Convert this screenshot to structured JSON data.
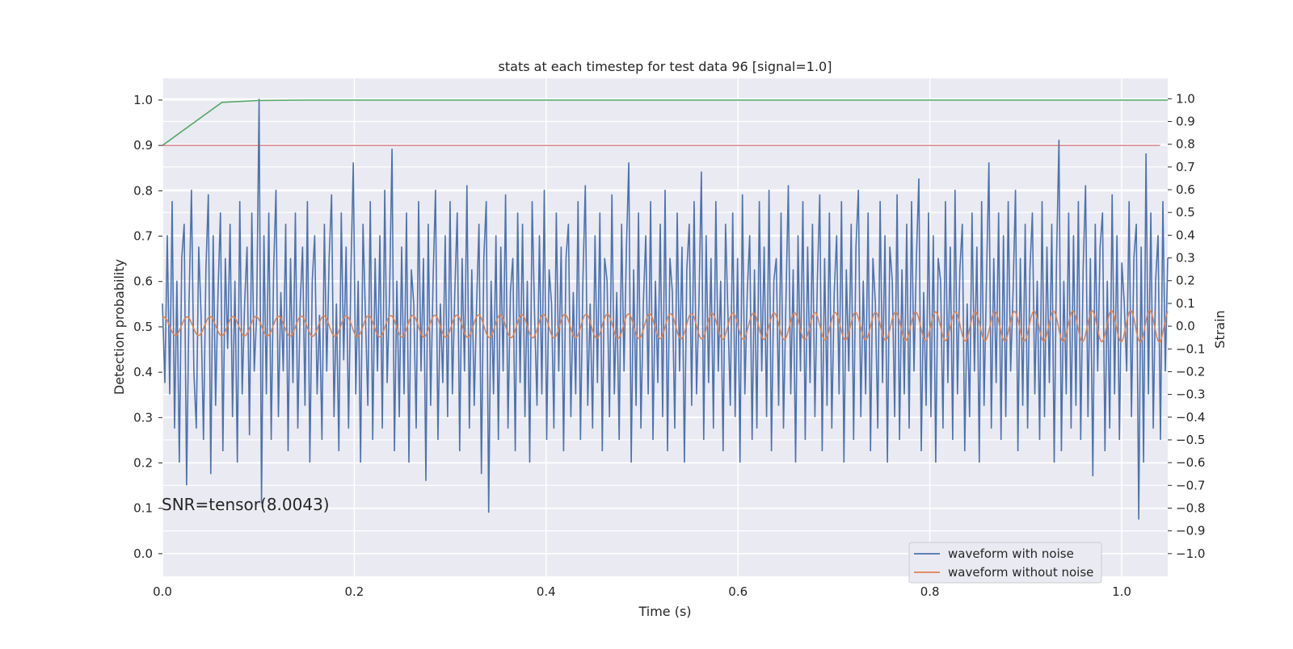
{
  "chart_data": {
    "type": "line",
    "title": "stats at each timestep for test data 96 [signal=1.0]",
    "xlabel": "Time (s)",
    "ylabel_left": "Detection probability",
    "ylabel_right": "Strain",
    "xlim": [
      0.0,
      1.048
    ],
    "ylim_left": [
      -0.05,
      1.048
    ],
    "ylim_right": [
      -1.1,
      1.09
    ],
    "xticks": [
      0.0,
      0.2,
      0.4,
      0.6,
      0.8,
      1.0
    ],
    "xtick_labels": [
      "0.0",
      "0.2",
      "0.4",
      "0.6",
      "0.8",
      "1.0"
    ],
    "yticks_left": [
      0.0,
      0.1,
      0.2,
      0.3,
      0.4,
      0.5,
      0.6,
      0.7,
      0.8,
      0.9,
      1.0
    ],
    "ytick_labels_left": [
      "0.0",
      "0.1",
      "0.2",
      "0.3",
      "0.4",
      "0.5",
      "0.6",
      "0.7",
      "0.8",
      "0.9",
      "1.0"
    ],
    "yticks_right": [
      -1.0,
      -0.9,
      -0.8,
      -0.7,
      -0.6,
      -0.5,
      -0.4,
      -0.3,
      -0.2,
      -0.1,
      0.0,
      0.1,
      0.2,
      0.3,
      0.4,
      0.5,
      0.6,
      0.7,
      0.8,
      0.9,
      1.0
    ],
    "ytick_labels_right": [
      "−1.0",
      "−0.9",
      "−0.8",
      "−0.7",
      "−0.6",
      "−0.5",
      "−0.4",
      "−0.3",
      "−0.2",
      "−0.1",
      "0.0",
      "0.1",
      "0.2",
      "0.3",
      "0.4",
      "0.5",
      "0.6",
      "0.7",
      "0.8",
      "0.9",
      "1.0"
    ],
    "grid": true,
    "legend_position": "lower-right",
    "annotation": "SNR=tensor(8.0043)",
    "series": [
      {
        "name": "waveform with noise",
        "axis": "right",
        "color": "#4c72b0",
        "x_start": 0.0,
        "x_end": 1.048,
        "values": [
          0.1,
          -0.25,
          0.4,
          -0.3,
          0.55,
          -0.45,
          0.2,
          -0.6,
          0.3,
          0.45,
          -0.7,
          0.1,
          0.6,
          -0.2,
          -0.45,
          0.35,
          0.05,
          -0.5,
          0.25,
          0.58,
          -0.65,
          0.4,
          -0.35,
          0.15,
          0.5,
          -0.55,
          0.3,
          -0.1,
          0.45,
          -0.4,
          0.2,
          -0.6,
          0.55,
          -0.3,
          0.1,
          0.35,
          -0.48,
          0.5,
          -0.2,
          0.05,
          1.0,
          -0.78,
          0.4,
          -0.3,
          0.5,
          -0.5,
          0.25,
          0.6,
          -0.4,
          0.15,
          -0.2,
          0.45,
          -0.55,
          0.3,
          -0.25,
          0.5,
          -0.45,
          0.1,
          0.35,
          -0.35,
          0.55,
          -0.6,
          0.2,
          0.4,
          -0.3,
          0.05,
          -0.5,
          0.45,
          -0.2,
          0.3,
          0.58,
          -0.4,
          0.1,
          -0.55,
          0.5,
          -0.15,
          0.35,
          -0.45,
          0.25,
          0.72,
          -0.3,
          0.2,
          -0.6,
          0.45,
          0.05,
          -0.35,
          0.55,
          -0.5,
          0.3,
          -0.2,
          0.4,
          -0.45,
          0.6,
          -0.25,
          0.15,
          0.78,
          -0.55,
          0.2,
          -0.4,
          0.35,
          -0.3,
          0.5,
          -0.6,
          0.25,
          0.1,
          -0.45,
          0.55,
          -0.2,
          0.3,
          -0.68,
          0.45,
          -0.35,
          0.2,
          0.6,
          -0.5,
          0.1,
          -0.25,
          0.4,
          -0.4,
          0.55,
          -0.3,
          0.15,
          0.5,
          -0.55,
          0.3,
          -0.2,
          0.62,
          -0.45,
          0.25,
          -0.35,
          0.1,
          0.45,
          -0.65,
          0.3,
          0.55,
          -0.82,
          0.2,
          -0.3,
          0.4,
          -0.5,
          0.35,
          -0.2,
          0.58,
          -0.45,
          0.15,
          0.3,
          -0.55,
          0.5,
          -0.25,
          0.45,
          -0.4,
          0.2,
          -0.6,
          0.55,
          0.05,
          -0.35,
          0.4,
          -0.3,
          0.6,
          -0.5,
          0.25,
          0.1,
          -0.45,
          0.5,
          -0.2,
          0.35,
          -0.55,
          0.3,
          0.45,
          -0.4,
          0.15,
          -0.3,
          0.55,
          -0.5,
          0.2,
          0.62,
          -0.35,
          0.1,
          -0.45,
          0.4,
          -0.25,
          0.5,
          -0.55,
          0.3,
          0.2,
          -0.4,
          0.58,
          -0.3,
          0.15,
          -0.5,
          0.45,
          -0.2,
          0.35,
          0.72,
          -0.6,
          0.25,
          -0.35,
          0.5,
          -0.45,
          0.1,
          0.4,
          -0.3,
          0.55,
          -0.5,
          0.2,
          -0.25,
          0.45,
          -0.4,
          0.6,
          -0.55,
          0.3,
          0.15,
          -0.45,
          0.5,
          -0.2,
          0.35,
          -0.6,
          0.25,
          0.45,
          -0.35,
          0.55,
          -0.3,
          0.1,
          0.68,
          -0.5,
          0.4,
          -0.25,
          0.3,
          -0.45,
          0.55,
          -0.2,
          0.2,
          -0.55,
          0.45,
          0.05,
          -0.35,
          0.5,
          -0.4,
          0.3,
          -0.6,
          0.58,
          -0.3,
          0.15,
          0.4,
          -0.5,
          0.25,
          -0.45,
          0.55,
          -0.2,
          0.35,
          -0.4,
          0.6,
          -0.55,
          0.2,
          0.3,
          -0.35,
          0.5,
          -0.45,
          0.1,
          0.62,
          -0.3,
          0.25,
          -0.6,
          0.4,
          -0.2,
          0.55,
          -0.5,
          0.35,
          -0.25,
          0.45,
          -0.4,
          0.2,
          0.58,
          -0.55,
          0.3,
          -0.35,
          0.5,
          -0.45,
          0.15,
          0.4,
          -0.3,
          0.55,
          -0.6,
          0.25,
          -0.2,
          0.45,
          -0.5,
          0.35,
          0.6,
          -0.4,
          0.2,
          -0.3,
          0.5,
          -0.55,
          0.3,
          0.1,
          -0.45,
          0.55,
          -0.25,
          0.4,
          -0.6,
          0.35,
          0.2,
          -0.4,
          0.58,
          -0.5,
          0.25,
          -0.3,
          0.45,
          -0.45,
          0.55,
          -0.2,
          0.3,
          0.65,
          -0.55,
          0.15,
          -0.35,
          0.5,
          -0.4,
          0.4,
          -0.6,
          0.3,
          0.2,
          -0.45,
          0.55,
          -0.25,
          0.35,
          -0.5,
          0.6,
          -0.3,
          0.25,
          0.45,
          -0.55,
          0.1,
          -0.4,
          0.5,
          -0.2,
          0.35,
          -0.6,
          0.55,
          -0.35,
          0.2,
          0.72,
          -0.45,
          0.3,
          -0.25,
          0.5,
          -0.5,
          0.4,
          -0.4,
          0.55,
          -0.2,
          0.15,
          0.6,
          -0.55,
          0.3,
          -0.35,
          0.45,
          -0.45,
          0.25,
          0.5,
          -0.3,
          0.2,
          -0.5,
          0.55,
          -0.4,
          0.35,
          -0.25,
          0.45,
          -0.6,
          0.3,
          0.82,
          -0.55,
          0.2,
          -0.3,
          0.5,
          -0.45,
          0.4,
          -0.35,
          0.55,
          -0.5,
          0.25,
          0.62,
          -0.4,
          0.3,
          -0.66,
          0.45,
          -0.2,
          0.35,
          0.5,
          -0.55,
          0.2,
          -0.45,
          0.58,
          -0.3,
          0.4,
          -0.5,
          0.28,
          0.1,
          -0.2,
          0.55,
          -0.4,
          0.3,
          0.45,
          -0.85,
          0.35,
          -0.6,
          0.76,
          -0.3,
          0.5,
          -0.45,
          0.2,
          0.4,
          -0.5,
          0.55,
          -0.2,
          0.3
        ]
      },
      {
        "name": "waveform without noise",
        "axis": "right",
        "color": "#dd8452",
        "x_start": 0.0,
        "x_end": 1.048,
        "amplitude_start": 0.04,
        "amplitude_end": 0.07,
        "cycles": 48
      },
      {
        "name": "",
        "axis": "left",
        "color": "#55a868",
        "x": [
          0.0,
          0.062,
          0.1,
          0.15,
          1.048
        ],
        "values": [
          0.9,
          0.995,
          0.999,
          1.0,
          1.0
        ]
      },
      {
        "name": "",
        "axis": "left",
        "color": "#c44e52",
        "x": [
          0.0,
          1.04
        ],
        "values": [
          0.9,
          0.9
        ]
      }
    ]
  }
}
